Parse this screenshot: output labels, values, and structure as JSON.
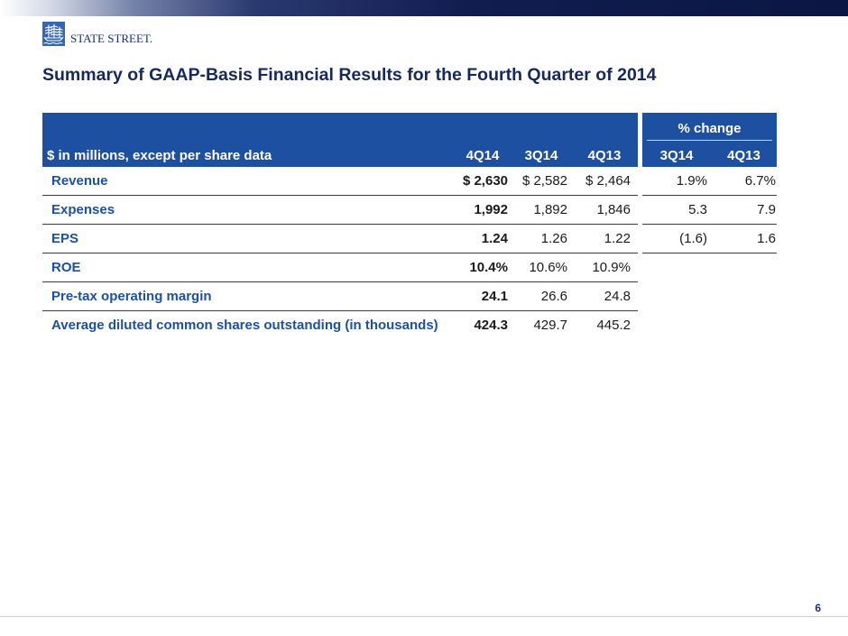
{
  "colors": {
    "header_blue": "#1e50a2",
    "label_blue": "#1e50a2",
    "title_navy": "#15285f",
    "brand_navy": "#1c2f6e"
  },
  "header": {
    "logo_icon": "ship-emblem-icon",
    "logo_text": "STATE STREET."
  },
  "title": "Summary of GAAP-Basis Financial Results for the Fourth Quarter of 2014",
  "table": {
    "group_header": "% change",
    "columns": {
      "label": "$ in millions, except per share data",
      "q4_2014": "4Q14",
      "q3_2014": "3Q14",
      "q4_2013": "4Q13",
      "pct_vs_3q14": "3Q14",
      "pct_vs_4q13": "4Q13"
    },
    "rows": [
      {
        "label": "Revenue",
        "q4_2014": "$ 2,630",
        "q3_2014": "$ 2,582",
        "q4_2013": "$ 2,464",
        "pct_vs_3q14": "1.9%",
        "pct_vs_4q13": "6.7%"
      },
      {
        "label": "Expenses",
        "q4_2014": "1,992",
        "q3_2014": "1,892",
        "q4_2013": "1,846",
        "pct_vs_3q14": "5.3",
        "pct_vs_4q13": "7.9"
      },
      {
        "label": "EPS",
        "q4_2014": "1.24",
        "q3_2014": "1.26",
        "q4_2013": "1.22",
        "pct_vs_3q14": "(1.6)",
        "pct_vs_4q13": "1.6"
      },
      {
        "label": "ROE",
        "q4_2014": "10.4%",
        "q3_2014": "10.6%",
        "q4_2013": "10.9%"
      },
      {
        "label": "Pre-tax operating margin",
        "q4_2014": "24.1",
        "q3_2014": "26.6",
        "q4_2013": "24.8"
      },
      {
        "label": "Average diluted common shares outstanding (in thousands)",
        "q4_2014": "424.3",
        "q3_2014": "429.7",
        "q4_2013": "445.2"
      }
    ]
  },
  "footer": {
    "page_number": "6"
  }
}
